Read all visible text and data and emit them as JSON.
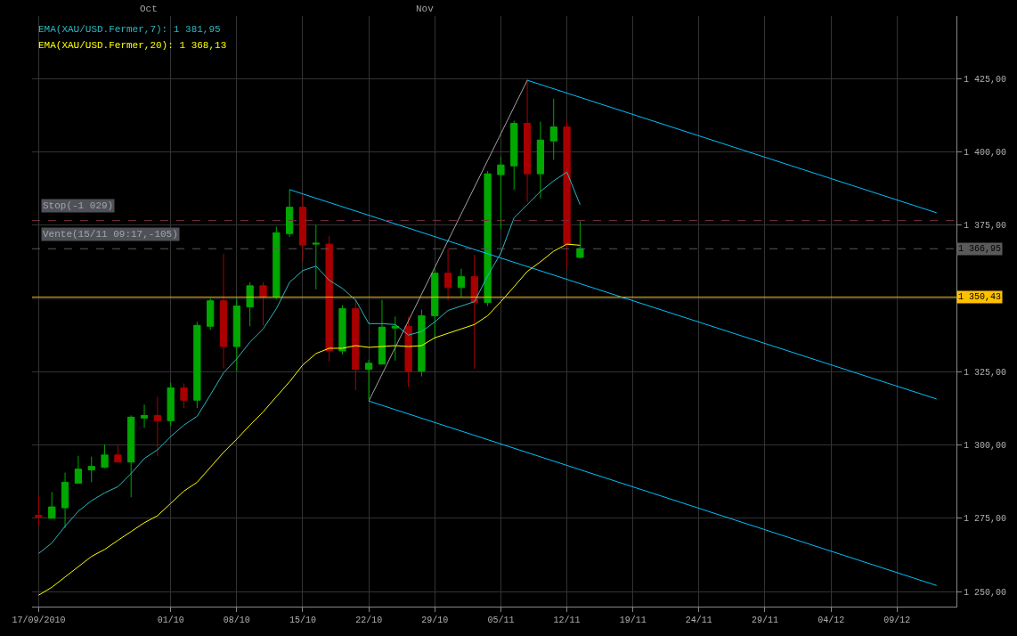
{
  "chart_data": {
    "type": "candlestick",
    "categories": [
      "17/09/2010",
      null,
      null,
      null,
      null,
      null,
      null,
      null,
      null,
      null,
      "01/10",
      null,
      null,
      null,
      null,
      "08/10",
      null,
      null,
      null,
      null,
      "15/10",
      null,
      null,
      null,
      null,
      "22/10",
      null,
      null,
      null,
      null,
      "29/10",
      null,
      null,
      null,
      null,
      "05/11",
      null,
      null,
      null,
      null,
      "12/11",
      null,
      null,
      null,
      null,
      "19/11",
      null,
      null,
      null,
      null,
      "24/11",
      null,
      null,
      null,
      null,
      "29/11",
      null,
      null,
      null,
      null,
      "04/12",
      null,
      null,
      null,
      null,
      "09/12",
      null,
      null,
      null,
      null
    ],
    "series": [
      {
        "colors": [
          "#a80000",
          "#00a800",
          "#00a800",
          "#00a800",
          "#00a800",
          "#00a800",
          "#a80000",
          "#00a800",
          "#00a800",
          "#a80000",
          "#00a800",
          "#a80000",
          "#00a800",
          "#00a800",
          "#a80000",
          "#00a800",
          "#00a800",
          "#a80000",
          "#00a800",
          "#00a800",
          "#a80000",
          "#00a800",
          "#a80000",
          "#00a800",
          "#a80000",
          "#00a800",
          "#00a800",
          "#00a800",
          "#a80000",
          "#00a800",
          "#00a800",
          "#a80000",
          "#00a800",
          "#a80000",
          "#00a800",
          "#00a800",
          "#00a800",
          "#a80000",
          "#00a800",
          "#00a800",
          "#a80000",
          "#00a800",
          null,
          null,
          null,
          null,
          null,
          null,
          null,
          null,
          null,
          null,
          null,
          null,
          null,
          null,
          null,
          null,
          null,
          null,
          null,
          null,
          null,
          null,
          null,
          null,
          null,
          null,
          null,
          null
        ],
        "ohlc": [
          [
            1276,
            1283,
            1272.5,
            1275.5
          ],
          [
            1275,
            1284,
            1275,
            1278.9
          ],
          [
            1278.6,
            1290.6,
            1271.7,
            1287.3
          ],
          [
            1287,
            1296.3,
            1287,
            1291.8
          ],
          [
            1291.5,
            1296,
            1287.3,
            1292.7
          ],
          [
            1292.4,
            1300.2,
            1292.1,
            1296.6
          ],
          [
            1296.6,
            1300.2,
            1294.2,
            1294.2
          ],
          [
            1294.2,
            1310.1,
            1282.2,
            1309.5
          ],
          [
            1309.2,
            1313.8,
            1305.9,
            1310.1
          ],
          [
            1310.1,
            1316.5,
            1296.3,
            1308.3
          ],
          [
            1308.3,
            1321.3,
            1306.5,
            1319.5
          ],
          [
            1319.5,
            1321,
            1312.6,
            1315.3
          ],
          [
            1315.3,
            1342,
            1312.6,
            1340.8
          ],
          [
            1340.5,
            1350.1,
            1339.3,
            1349.2
          ],
          [
            1349.2,
            1365.2,
            1326.1,
            1333.6
          ],
          [
            1333.6,
            1350.1,
            1325.2,
            1347.4
          ],
          [
            1347.1,
            1355.5,
            1340.5,
            1354.3
          ],
          [
            1354.3,
            1355.5,
            1340.8,
            1350.4
          ],
          [
            1350.4,
            1374.5,
            1349.8,
            1372.4
          ],
          [
            1372.1,
            1387.1,
            1370.9,
            1381.1
          ],
          [
            1381.1,
            1385,
            1362.8,
            1368.2
          ],
          [
            1368.5,
            1375.1,
            1353.1,
            1368.8
          ],
          [
            1368.5,
            1371.2,
            1328.5,
            1332.1
          ],
          [
            1332.1,
            1347.7,
            1330.9,
            1346.5
          ],
          [
            1346.5,
            1349.5,
            1318.7,
            1325.8
          ],
          [
            1325.8,
            1329.1,
            1315.6,
            1327.9
          ],
          [
            1327.6,
            1349.5,
            1327.6,
            1340.2
          ],
          [
            1339.9,
            1343.8,
            1328.8,
            1340.5
          ],
          [
            1340.5,
            1343.8,
            1319.8,
            1325.2
          ],
          [
            1325.2,
            1346.2,
            1323.4,
            1344.1
          ],
          [
            1344.1,
            1359.8,
            1336,
            1358.6
          ],
          [
            1358.6,
            1367,
            1349.2,
            1353.7
          ],
          [
            1353.7,
            1360.1,
            1350.4,
            1357.4
          ],
          [
            1357.4,
            1364.9,
            1326,
            1348.6
          ],
          [
            1348.6,
            1393.4,
            1347.4,
            1392.5
          ],
          [
            1392.2,
            1398.2,
            1373.6,
            1395.5
          ],
          [
            1395.2,
            1410.6,
            1387.1,
            1409.7
          ],
          [
            1409.7,
            1424.7,
            1382.9,
            1392.5
          ],
          [
            1392.5,
            1410.3,
            1384.1,
            1404
          ],
          [
            1403.7,
            1418.1,
            1397.3,
            1408.5
          ],
          [
            1408.5,
            1410.6,
            1360.1,
            1368.5
          ],
          [
            1364,
            1376.3,
            1363.7,
            1367
          ],
          null,
          null,
          null,
          null,
          null,
          null,
          null,
          null,
          null,
          null,
          null,
          null,
          null,
          null,
          null,
          null,
          null,
          null,
          null,
          null,
          null,
          null,
          null,
          null,
          null,
          null,
          null,
          null
        ]
      },
      {
        "type": "line",
        "name": "EMA(XAU/USD.Fermer,7): 1 381,95",
        "color": "#2ab8c0",
        "values": [
          1263,
          1266.6,
          1272.3,
          1277.4,
          1281,
          1283.7,
          1285.8,
          1290.3,
          1295.4,
          1298.4,
          1302.9,
          1306.8,
          1309.8,
          1317.1,
          1324.6,
          1329.4,
          1335.1,
          1339.6,
          1346.5,
          1355.5,
          1359.5,
          1361,
          1356.2,
          1353.4,
          1349.5,
          1341.4,
          1341.4,
          1341.1,
          1337.5,
          1338.7,
          1342,
          1345.9,
          1347.4,
          1348.9,
          1357.7,
          1365.5,
          1377.5,
          1382,
          1386.5,
          1390.1,
          1393.1,
          1381.95,
          null,
          null,
          null,
          null,
          null,
          null,
          null,
          null,
          null,
          null,
          null,
          null,
          null,
          null,
          null,
          null,
          null,
          null,
          null,
          null,
          null,
          null,
          null,
          null,
          null,
          null,
          null,
          null
        ]
      },
      {
        "type": "line",
        "name": "EMA(XAU/USD.Fermer,20): 1 368,13",
        "color": "#ffff00",
        "values": [
          1248.8,
          1251.5,
          1255,
          1258.5,
          1262,
          1264.4,
          1267.5,
          1270.5,
          1273.5,
          1275.9,
          1280.1,
          1284.3,
          1287.3,
          1292.4,
          1297.5,
          1302,
          1306.8,
          1311.3,
          1316.5,
          1321.6,
          1327.3,
          1331.2,
          1333,
          1333,
          1333.9,
          1333.3,
          1333.6,
          1333.9,
          1333.6,
          1333.9,
          1336.6,
          1338.1,
          1339.6,
          1341.1,
          1344.1,
          1348.9,
          1354,
          1359.2,
          1362.5,
          1366.1,
          1368.5,
          1368.13,
          null,
          null,
          null,
          null,
          null,
          null,
          null,
          null,
          null,
          null,
          null,
          null,
          null,
          null,
          null,
          null,
          null,
          null,
          null,
          null,
          null,
          null,
          null,
          null,
          null,
          null,
          null,
          null
        ]
      },
      {
        "type": "line",
        "color": "#00c0ff",
        "values": [
          null,
          null,
          null,
          null,
          null,
          null,
          null,
          null,
          null,
          null,
          null,
          null,
          null,
          null,
          null,
          null,
          null,
          null,
          null,
          null,
          null,
          null,
          null,
          null,
          null,
          null,
          null,
          null,
          null,
          null,
          null,
          null,
          null,
          null,
          null,
          null,
          null,
          1424.4,
          null,
          null,
          null,
          null,
          null,
          null,
          null,
          null,
          null,
          null,
          null,
          null,
          null,
          null,
          null,
          null,
          null,
          null,
          null,
          null,
          null,
          null,
          null,
          null,
          null,
          null,
          null,
          null,
          null,
          null,
          1379.2,
          null
        ]
      },
      {
        "type": "line",
        "color": "#00c0ff",
        "values": [
          null,
          null,
          null,
          null,
          null,
          null,
          null,
          null,
          null,
          null,
          null,
          null,
          null,
          null,
          null,
          null,
          null,
          null,
          null,
          1387.1,
          null,
          null,
          null,
          null,
          null,
          null,
          null,
          null,
          null,
          null,
          null,
          null,
          null,
          null,
          null,
          null,
          null,
          null,
          null,
          null,
          null,
          null,
          null,
          null,
          null,
          null,
          null,
          null,
          null,
          null,
          null,
          null,
          null,
          null,
          null,
          null,
          null,
          null,
          null,
          null,
          null,
          null,
          null,
          null,
          null,
          null,
          null,
          null,
          1315.7,
          null
        ]
      },
      {
        "type": "line",
        "color": "#00c0ff",
        "values": [
          null,
          null,
          null,
          null,
          null,
          null,
          null,
          null,
          null,
          null,
          null,
          null,
          null,
          null,
          null,
          null,
          null,
          null,
          null,
          null,
          null,
          null,
          null,
          null,
          null,
          1315,
          null,
          null,
          null,
          null,
          null,
          null,
          null,
          null,
          null,
          null,
          null,
          null,
          null,
          null,
          null,
          null,
          null,
          null,
          null,
          null,
          null,
          null,
          null,
          null,
          null,
          null,
          null,
          null,
          null,
          null,
          null,
          null,
          null,
          null,
          null,
          null,
          null,
          null,
          null,
          null,
          null,
          null,
          1252.1,
          null
        ]
      },
      {
        "type": "line",
        "color": "#a0a0a0",
        "values": [
          null,
          null,
          null,
          null,
          null,
          null,
          null,
          null,
          null,
          null,
          null,
          null,
          null,
          null,
          null,
          null,
          null,
          null,
          null,
          null,
          null,
          null,
          null,
          null,
          null,
          1315,
          null,
          null,
          null,
          null,
          null,
          null,
          null,
          null,
          null,
          null,
          null,
          1424.4,
          null,
          null,
          null,
          null,
          null,
          null,
          null,
          null,
          null,
          null,
          null,
          null,
          null,
          null,
          null,
          null,
          null,
          null,
          null,
          null,
          null,
          null,
          null,
          null,
          null,
          null,
          null,
          null,
          null,
          null,
          null,
          null
        ]
      }
    ],
    "ylim": [
      1244.9,
      1446.3
    ],
    "yticks": [
      {
        "value": 1250,
        "label": "1 250,00"
      },
      {
        "value": 1275,
        "label": "1 275,00"
      },
      {
        "value": 1300,
        "label": "1 300,00"
      },
      {
        "value": 1325,
        "label": "1 325,00"
      },
      {
        "value": 1350,
        "label": null
      },
      {
        "value": 1375,
        "label": "1 375,00"
      },
      {
        "value": 1400,
        "label": "1 400,00"
      },
      {
        "value": 1425,
        "label": "1 425,00"
      }
    ],
    "ref_lines": [
      {
        "axis": "y",
        "value": 1376.6,
        "color": "#7a2a45",
        "line_style": "dashed"
      },
      {
        "axis": "y",
        "value": 1366.95,
        "label": "1 366,95",
        "color": "#5a5a5a",
        "line_style": "dashed"
      },
      {
        "axis": "y",
        "value": 1350.43,
        "label": "1 350,43",
        "color": "#ffc000",
        "line_style": "solid"
      }
    ],
    "annotations": [
      {
        "text": "Stop(-1 029)",
        "y": 1376.6
      },
      {
        "text": "Vente(15/11 09:17,-105)",
        "y": 1366.95
      },
      "Oct",
      "Nov"
    ],
    "grid": true,
    "legend": false
  }
}
